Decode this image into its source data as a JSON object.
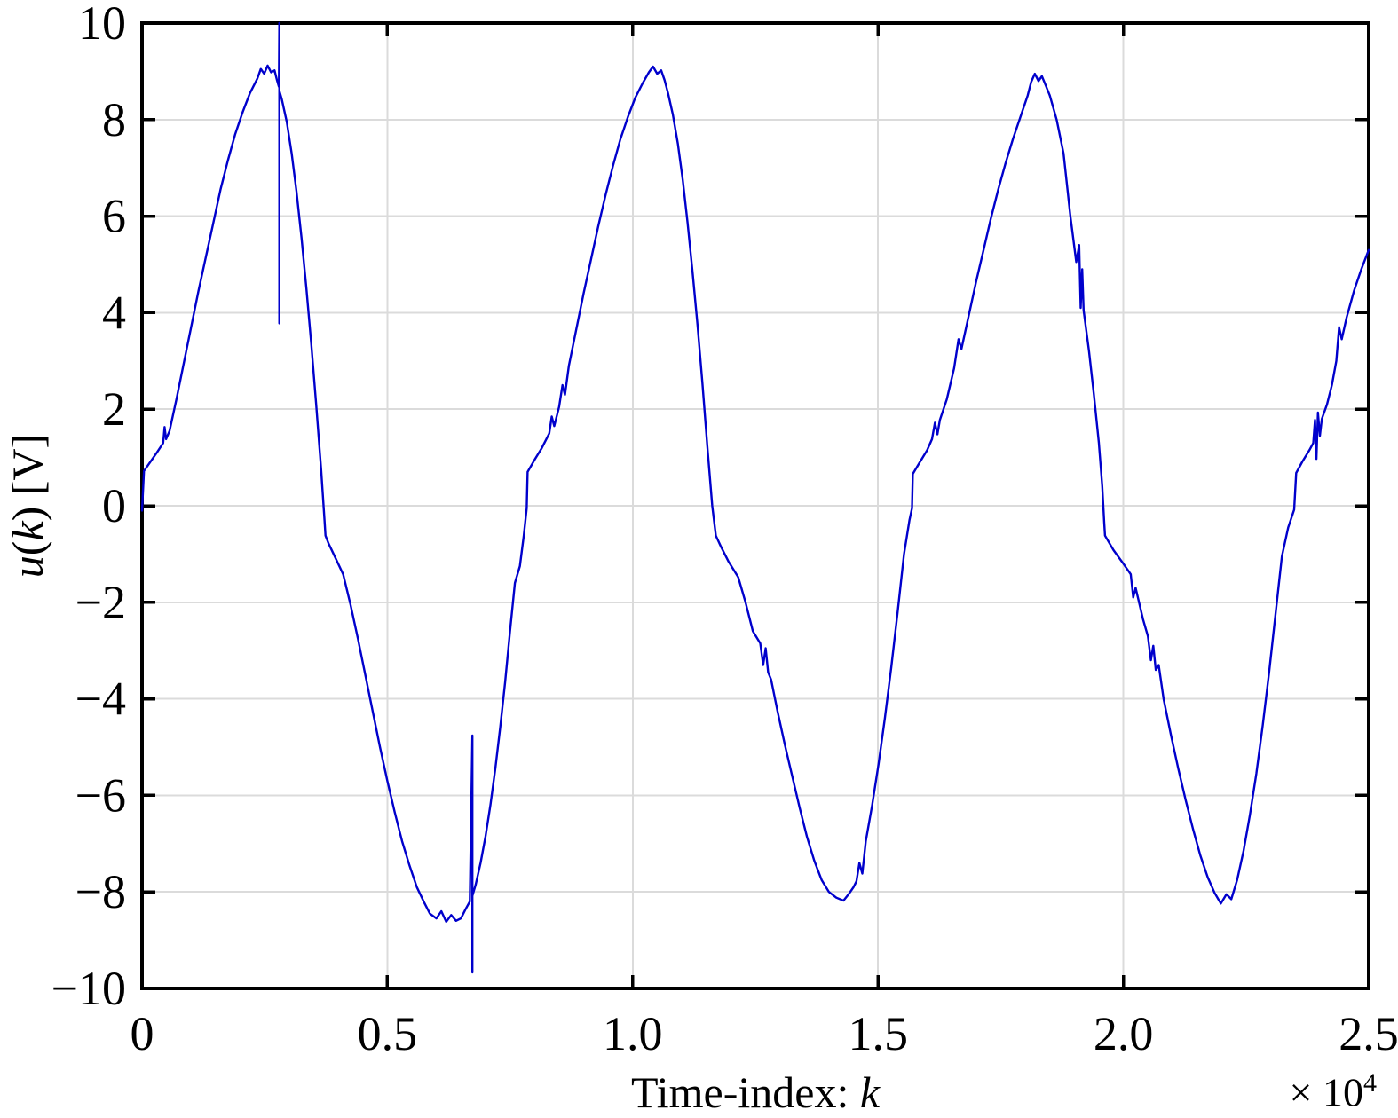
{
  "figure": {
    "xlabel": {
      "prefix": "Time-index: ",
      "var": "k"
    },
    "ylabel": {
      "u": "u",
      "open": "(",
      "k": "k",
      "close": ") [V]"
    },
    "offset": {
      "base": "× 10",
      "exp": "4"
    }
  },
  "chart_data": {
    "type": "line",
    "title": "",
    "xlabel": "Time-index: k",
    "ylabel": "u(k) [V]",
    "x_axis_multiplier": "× 10⁴",
    "xlim": [
      0,
      25000
    ],
    "ylim": [
      -10,
      10
    ],
    "grid": true,
    "legend": "none",
    "grid_color": "#dbdbdb",
    "axis_color": "#000000",
    "line_color": "#0000cc",
    "xticks": {
      "values": [
        0,
        5000,
        10000,
        15000,
        20000,
        25000
      ],
      "labels": [
        "0",
        "0.5",
        "1.0",
        "1.5",
        "2.0",
        "2.5"
      ]
    },
    "yticks": {
      "values": [
        10,
        8,
        6,
        4,
        2,
        0,
        -2,
        -4,
        -6,
        -8,
        -10
      ],
      "labels": [
        "10",
        "8",
        "6",
        "4",
        "2",
        "0",
        "−2",
        "−4",
        "−6",
        "−8",
        "−10"
      ]
    },
    "series": [
      {
        "name": "u(k)",
        "points": [
          [
            0,
            -0.1
          ],
          [
            40,
            0.72
          ],
          [
            150,
            0.88
          ],
          [
            300,
            1.1
          ],
          [
            430,
            1.3
          ],
          [
            460,
            1.63
          ],
          [
            490,
            1.38
          ],
          [
            560,
            1.55
          ],
          [
            700,
            2.2
          ],
          [
            850,
            2.95
          ],
          [
            1000,
            3.7
          ],
          [
            1150,
            4.45
          ],
          [
            1300,
            5.15
          ],
          [
            1450,
            5.85
          ],
          [
            1600,
            6.55
          ],
          [
            1750,
            7.15
          ],
          [
            1900,
            7.7
          ],
          [
            2050,
            8.15
          ],
          [
            2200,
            8.55
          ],
          [
            2350,
            8.85
          ],
          [
            2420,
            9.05
          ],
          [
            2490,
            8.95
          ],
          [
            2560,
            9.12
          ],
          [
            2630,
            8.98
          ],
          [
            2700,
            9.02
          ],
          [
            2750,
            8.82
          ],
          [
            2790,
            8.68
          ],
          [
            2798,
            10.0
          ],
          [
            2798,
            3.78
          ],
          [
            2798,
            8.6
          ],
          [
            2850,
            8.42
          ],
          [
            2950,
            7.95
          ],
          [
            3050,
            7.3
          ],
          [
            3150,
            6.5
          ],
          [
            3250,
            5.55
          ],
          [
            3350,
            4.5
          ],
          [
            3450,
            3.35
          ],
          [
            3550,
            2.1
          ],
          [
            3650,
            0.75
          ],
          [
            3720,
            -0.3
          ],
          [
            3740,
            -0.62
          ],
          [
            3800,
            -0.78
          ],
          [
            3950,
            -1.1
          ],
          [
            4100,
            -1.42
          ],
          [
            4250,
            -2.05
          ],
          [
            4400,
            -2.75
          ],
          [
            4550,
            -3.5
          ],
          [
            4700,
            -4.25
          ],
          [
            4850,
            -5.0
          ],
          [
            5000,
            -5.7
          ],
          [
            5150,
            -6.35
          ],
          [
            5300,
            -6.95
          ],
          [
            5450,
            -7.45
          ],
          [
            5600,
            -7.9
          ],
          [
            5750,
            -8.22
          ],
          [
            5866,
            -8.45
          ],
          [
            6000,
            -8.55
          ],
          [
            6100,
            -8.4
          ],
          [
            6200,
            -8.62
          ],
          [
            6300,
            -8.48
          ],
          [
            6400,
            -8.6
          ],
          [
            6500,
            -8.55
          ],
          [
            6600,
            -8.35
          ],
          [
            6680,
            -8.2
          ],
          [
            6733,
            -4.76
          ],
          [
            6733,
            -9.67
          ],
          [
            6733,
            -8.08
          ],
          [
            6800,
            -7.85
          ],
          [
            6900,
            -7.4
          ],
          [
            7000,
            -6.85
          ],
          [
            7100,
            -6.2
          ],
          [
            7200,
            -5.45
          ],
          [
            7300,
            -4.6
          ],
          [
            7400,
            -3.65
          ],
          [
            7500,
            -2.6
          ],
          [
            7600,
            -1.6
          ],
          [
            7700,
            -1.25
          ],
          [
            7780,
            -0.62
          ],
          [
            7840,
            -0.05
          ],
          [
            7858,
            0.7
          ],
          [
            8000,
            0.95
          ],
          [
            8150,
            1.2
          ],
          [
            8300,
            1.5
          ],
          [
            8350,
            1.85
          ],
          [
            8400,
            1.65
          ],
          [
            8500,
            2.05
          ],
          [
            8570,
            2.5
          ],
          [
            8620,
            2.3
          ],
          [
            8700,
            2.9
          ],
          [
            8850,
            3.65
          ],
          [
            9000,
            4.4
          ],
          [
            9150,
            5.1
          ],
          [
            9300,
            5.8
          ],
          [
            9450,
            6.45
          ],
          [
            9600,
            7.05
          ],
          [
            9750,
            7.6
          ],
          [
            9900,
            8.05
          ],
          [
            10050,
            8.45
          ],
          [
            10200,
            8.75
          ],
          [
            10330,
            8.98
          ],
          [
            10415,
            9.1
          ],
          [
            10500,
            8.95
          ],
          [
            10580,
            9.02
          ],
          [
            10650,
            8.82
          ],
          [
            10720,
            8.55
          ],
          [
            10820,
            8.1
          ],
          [
            10920,
            7.5
          ],
          [
            11020,
            6.75
          ],
          [
            11120,
            5.85
          ],
          [
            11220,
            4.85
          ],
          [
            11320,
            3.75
          ],
          [
            11420,
            2.55
          ],
          [
            11520,
            1.25
          ],
          [
            11620,
            0.0
          ],
          [
            11680,
            -0.5
          ],
          [
            11695,
            -0.62
          ],
          [
            11800,
            -0.85
          ],
          [
            11950,
            -1.15
          ],
          [
            12150,
            -1.48
          ],
          [
            12300,
            -2.0
          ],
          [
            12450,
            -2.6
          ],
          [
            12600,
            -2.85
          ],
          [
            12660,
            -3.3
          ],
          [
            12710,
            -2.95
          ],
          [
            12760,
            -3.45
          ],
          [
            12820,
            -3.6
          ],
          [
            12950,
            -4.25
          ],
          [
            13100,
            -4.95
          ],
          [
            13250,
            -5.6
          ],
          [
            13400,
            -6.25
          ],
          [
            13550,
            -6.85
          ],
          [
            13700,
            -7.35
          ],
          [
            13850,
            -7.75
          ],
          [
            14000,
            -8.0
          ],
          [
            14150,
            -8.12
          ],
          [
            14296,
            -8.18
          ],
          [
            14400,
            -8.05
          ],
          [
            14500,
            -7.9
          ],
          [
            14560,
            -7.78
          ],
          [
            14620,
            -7.4
          ],
          [
            14680,
            -7.62
          ],
          [
            14750,
            -6.95
          ],
          [
            14880,
            -6.2
          ],
          [
            15010,
            -5.35
          ],
          [
            15140,
            -4.4
          ],
          [
            15270,
            -3.35
          ],
          [
            15400,
            -2.2
          ],
          [
            15530,
            -1.0
          ],
          [
            15640,
            -0.3
          ],
          [
            15692,
            -0.05
          ],
          [
            15710,
            0.66
          ],
          [
            15850,
            0.9
          ],
          [
            16000,
            1.15
          ],
          [
            16100,
            1.38
          ],
          [
            16160,
            1.72
          ],
          [
            16210,
            1.48
          ],
          [
            16260,
            1.78
          ],
          [
            16400,
            2.2
          ],
          [
            16550,
            2.85
          ],
          [
            16640,
            3.45
          ],
          [
            16700,
            3.25
          ],
          [
            16850,
            3.95
          ],
          [
            17000,
            4.65
          ],
          [
            17150,
            5.3
          ],
          [
            17300,
            5.95
          ],
          [
            17450,
            6.55
          ],
          [
            17600,
            7.1
          ],
          [
            17750,
            7.6
          ],
          [
            17900,
            8.05
          ],
          [
            18050,
            8.5
          ],
          [
            18120,
            8.78
          ],
          [
            18195,
            8.95
          ],
          [
            18270,
            8.8
          ],
          [
            18340,
            8.9
          ],
          [
            18420,
            8.7
          ],
          [
            18500,
            8.5
          ],
          [
            18640,
            8.0
          ],
          [
            18780,
            7.3
          ],
          [
            18920,
            6.0
          ],
          [
            19040,
            5.05
          ],
          [
            19100,
            5.4
          ],
          [
            19130,
            4.1
          ],
          [
            19160,
            4.9
          ],
          [
            19190,
            4.05
          ],
          [
            19300,
            3.2
          ],
          [
            19400,
            2.3
          ],
          [
            19500,
            1.3
          ],
          [
            19570,
            0.4
          ],
          [
            19610,
            -0.35
          ],
          [
            19625,
            -0.62
          ],
          [
            19800,
            -0.92
          ],
          [
            20000,
            -1.2
          ],
          [
            20150,
            -1.42
          ],
          [
            20200,
            -1.9
          ],
          [
            20250,
            -1.7
          ],
          [
            20400,
            -2.35
          ],
          [
            20500,
            -2.7
          ],
          [
            20560,
            -3.2
          ],
          [
            20610,
            -2.9
          ],
          [
            20660,
            -3.4
          ],
          [
            20720,
            -3.3
          ],
          [
            20820,
            -4.0
          ],
          [
            20970,
            -4.75
          ],
          [
            21120,
            -5.45
          ],
          [
            21270,
            -6.1
          ],
          [
            21420,
            -6.7
          ],
          [
            21570,
            -7.25
          ],
          [
            21720,
            -7.7
          ],
          [
            21860,
            -8.02
          ],
          [
            21986,
            -8.24
          ],
          [
            22100,
            -8.05
          ],
          [
            22200,
            -8.15
          ],
          [
            22320,
            -7.75
          ],
          [
            22450,
            -7.15
          ],
          [
            22580,
            -6.4
          ],
          [
            22710,
            -5.55
          ],
          [
            22840,
            -4.55
          ],
          [
            22970,
            -3.45
          ],
          [
            23100,
            -2.25
          ],
          [
            23230,
            -1.05
          ],
          [
            23360,
            -0.45
          ],
          [
            23480,
            -0.08
          ],
          [
            23522,
            0.68
          ],
          [
            23650,
            0.92
          ],
          [
            23790,
            1.15
          ],
          [
            23870,
            1.3
          ],
          [
            23905,
            1.78
          ],
          [
            23935,
            0.97
          ],
          [
            23965,
            1.93
          ],
          [
            24005,
            1.45
          ],
          [
            24045,
            1.8
          ],
          [
            24150,
            2.1
          ],
          [
            24250,
            2.5
          ],
          [
            24340,
            3.0
          ],
          [
            24395,
            3.7
          ],
          [
            24450,
            3.45
          ],
          [
            24550,
            3.9
          ],
          [
            24700,
            4.45
          ],
          [
            24850,
            4.9
          ],
          [
            25000,
            5.3
          ]
        ]
      }
    ]
  }
}
